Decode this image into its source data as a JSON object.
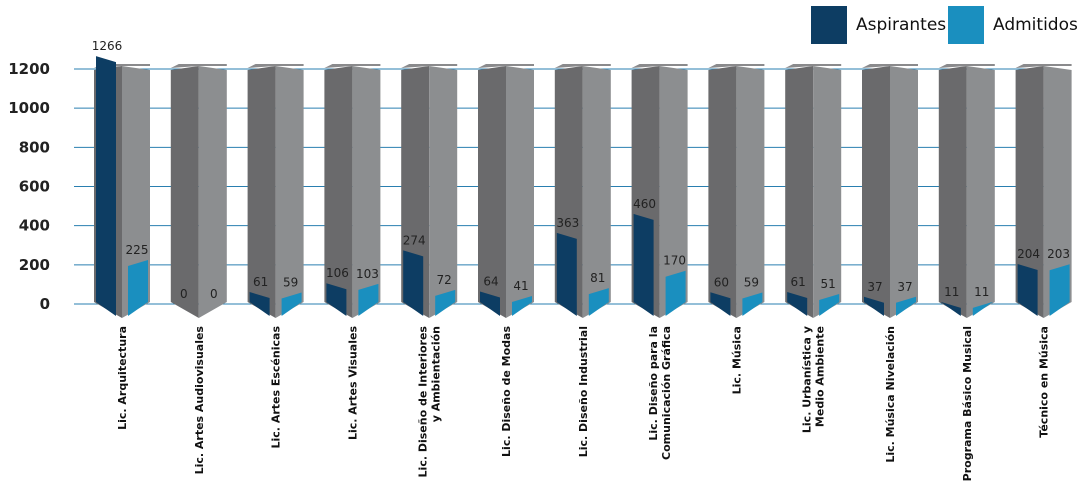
{
  "chart_data": {
    "type": "bar",
    "title": "",
    "xlabel": "",
    "ylabel": "",
    "ylim": [
      0,
      1200
    ],
    "yticks": [
      0,
      200,
      400,
      600,
      800,
      1000,
      1200
    ],
    "grid": true,
    "legend_position": "top-right",
    "categories": [
      [
        "Lic. Arquitectura"
      ],
      [
        "Lic. Artes Audiovisuales"
      ],
      [
        "Lic. Artes Escénicas"
      ],
      [
        "Lic. Artes Visuales"
      ],
      [
        "Lic. Diseño de Interiores",
        "y Ambientación"
      ],
      [
        "Lic. Diseño de Modas"
      ],
      [
        "Lic. Diseño Industrial"
      ],
      [
        "Lic. Diseño para la",
        "Comunicación Gráfica"
      ],
      [
        "Lic. Música"
      ],
      [
        "Lic. Urbanística y",
        "Medio Ambiente"
      ],
      [
        "Lic. Música Nivelación"
      ],
      [
        "Programa Básico Musical"
      ],
      [
        "Técnico en Música"
      ]
    ],
    "series": [
      {
        "name": "Aspirantes",
        "color": "#0d3d63",
        "values": [
          1266,
          0,
          61,
          106,
          274,
          64,
          363,
          460,
          60,
          61,
          37,
          11,
          204
        ]
      },
      {
        "name": "Admitidos",
        "color": "#1a8fbf",
        "values": [
          225,
          0,
          59,
          103,
          72,
          41,
          81,
          170,
          59,
          51,
          37,
          11,
          203
        ]
      }
    ]
  }
}
